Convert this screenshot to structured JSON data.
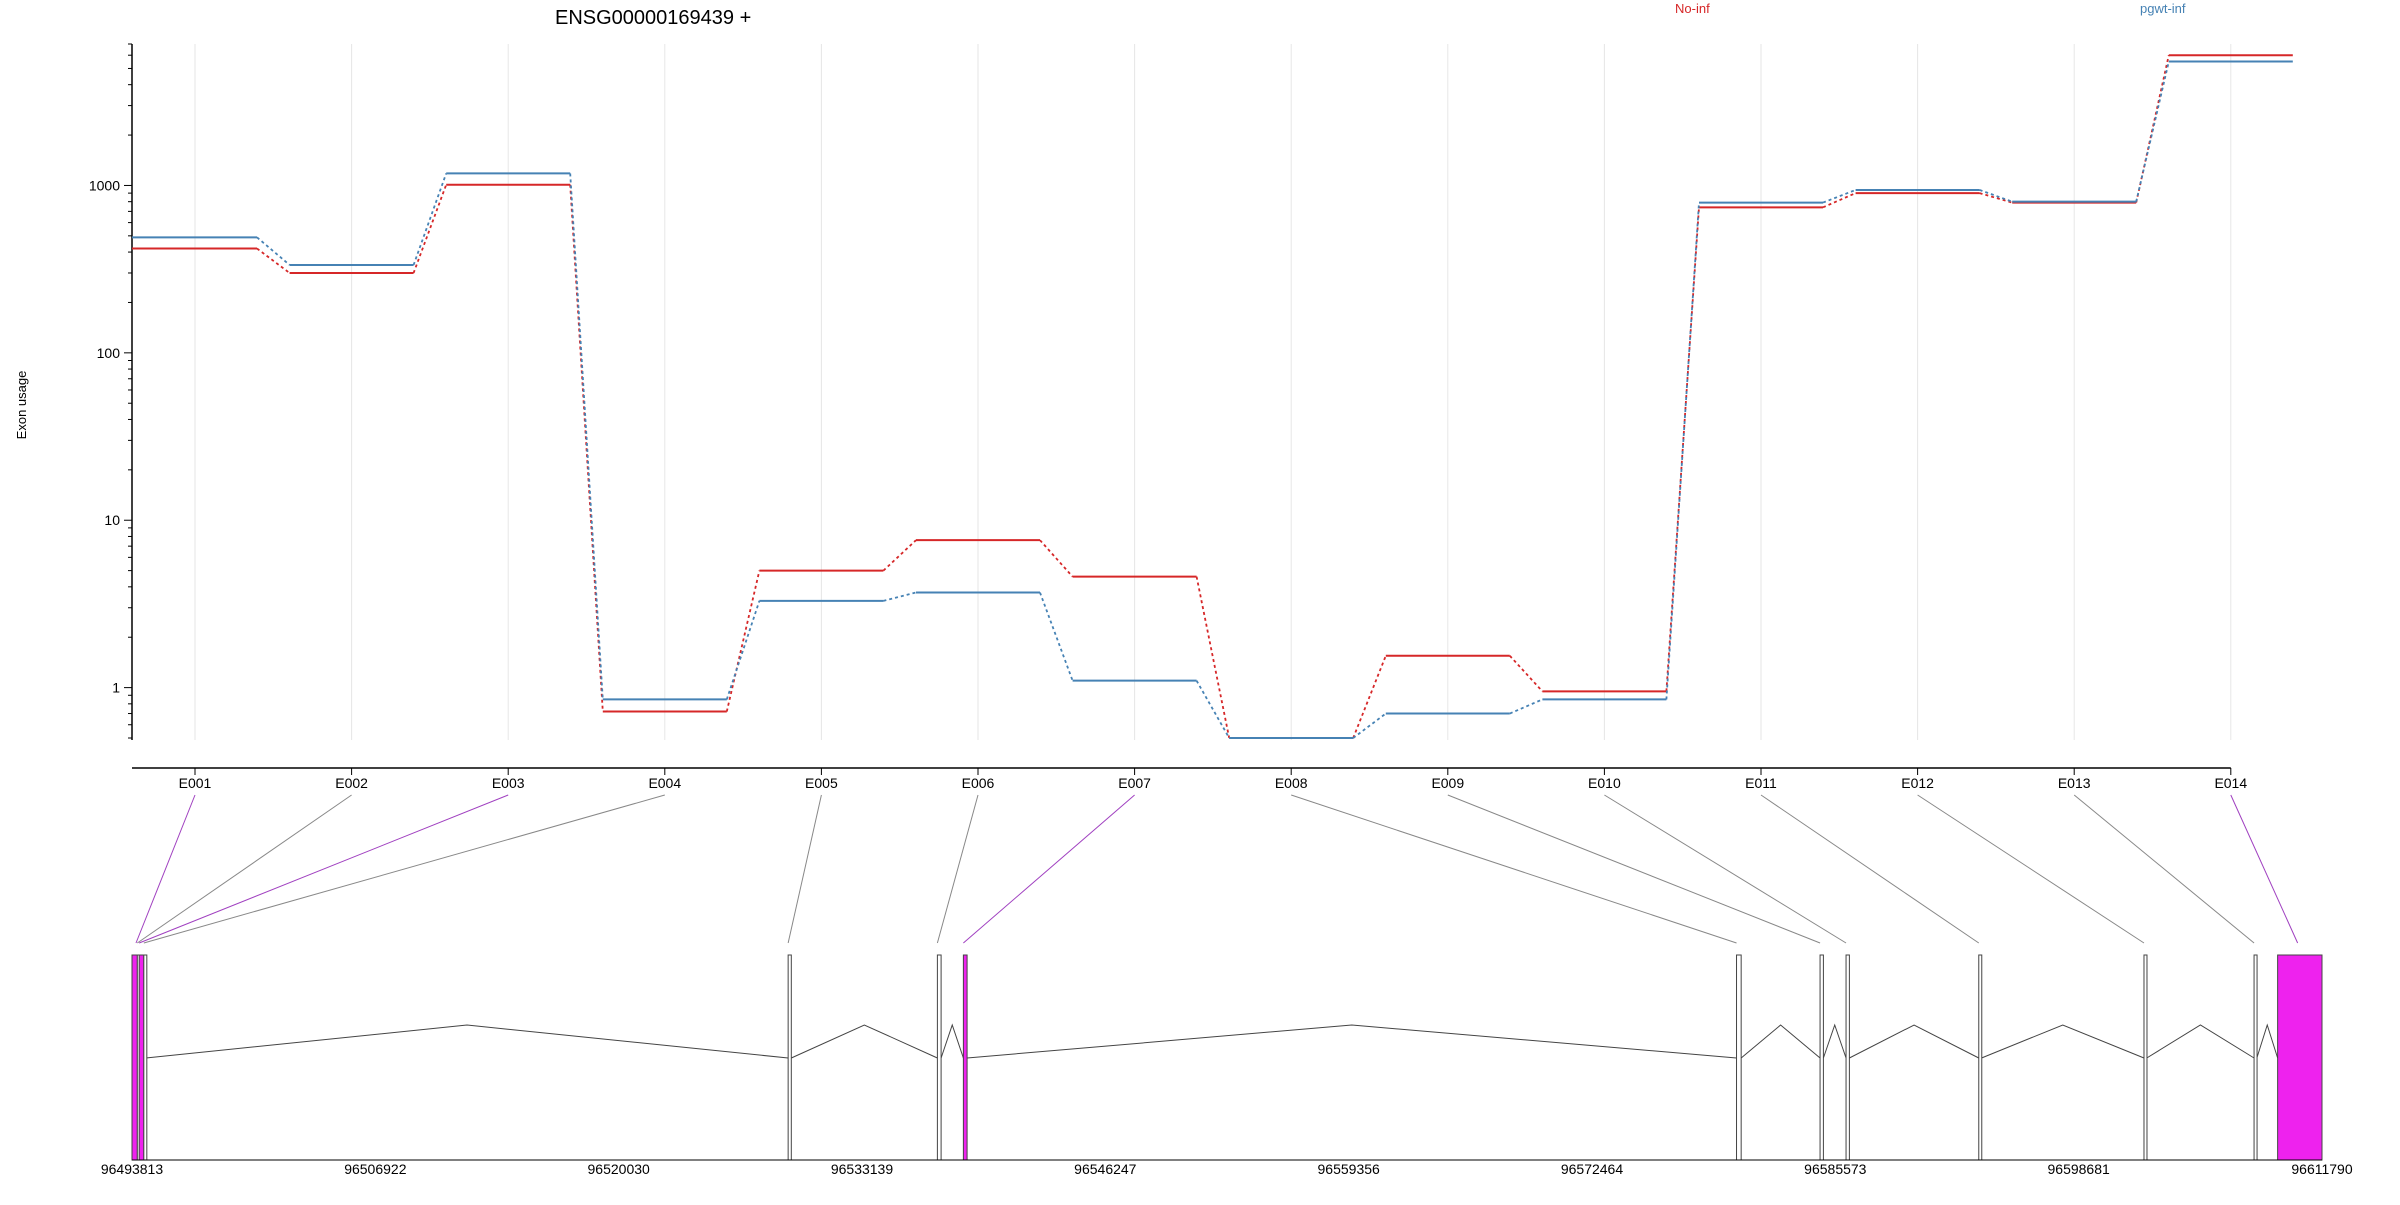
{
  "chart_data": {
    "type": "line",
    "title": "ENSG00000169439 +",
    "ylabel": "Exon usage",
    "yscale": "log",
    "ylim": [
      0.5,
      7000
    ],
    "y_ticks": [
      {
        "value": 1,
        "label": "1"
      },
      {
        "value": 10,
        "label": "10"
      },
      {
        "value": 100,
        "label": "100"
      },
      {
        "value": 1000,
        "label": "1000"
      }
    ],
    "categories": [
      "E001",
      "E002",
      "E003",
      "E004",
      "E005",
      "E006",
      "E007",
      "E008",
      "E009",
      "E010",
      "E011",
      "E012",
      "E013",
      "E014"
    ],
    "legend_placement": "top",
    "series": [
      {
        "name": "No-inf",
        "color": "#d62728",
        "values": [
          420,
          300,
          1010,
          0.72,
          5.0,
          7.6,
          4.6,
          0.5,
          1.55,
          0.95,
          740,
          900,
          790,
          6000
        ]
      },
      {
        "name": "pgwt-inf",
        "color": "#4682b4",
        "values": [
          490,
          335,
          1180,
          0.85,
          3.3,
          3.7,
          1.1,
          0.5,
          0.7,
          0.85,
          790,
          940,
          800,
          5500
        ]
      }
    ],
    "gene_model": {
      "coord_range": [
        96493813,
        96611790
      ],
      "coord_ticks": [
        96493813,
        96506922,
        96520030,
        96533139,
        96546247,
        96559356,
        96572464,
        96585573,
        96598681,
        96611790
      ],
      "exons": [
        {
          "id": "E001",
          "start": 96493813,
          "end": 96494100,
          "highlight": true
        },
        {
          "id": "E002",
          "start": 96494100,
          "end": 96494200,
          "highlight": false
        },
        {
          "id": "E003",
          "start": 96494200,
          "end": 96494450,
          "highlight": true
        },
        {
          "id": "E004",
          "start": 96494450,
          "end": 96494560,
          "highlight": false
        },
        {
          "id": "E005",
          "start": 96529160,
          "end": 96529330,
          "highlight": false
        },
        {
          "id": "E006",
          "start": 96537200,
          "end": 96537400,
          "highlight": false
        },
        {
          "id": "E007",
          "start": 96538600,
          "end": 96538800,
          "highlight": true
        },
        {
          "id": "E008",
          "start": 96580250,
          "end": 96580500,
          "highlight": false
        },
        {
          "id": "E009",
          "start": 96584750,
          "end": 96584930,
          "highlight": false
        },
        {
          "id": "E010",
          "start": 96586150,
          "end": 96586330,
          "highlight": false
        },
        {
          "id": "E011",
          "start": 96593300,
          "end": 96593450,
          "highlight": false
        },
        {
          "id": "E012",
          "start": 96602200,
          "end": 96602350,
          "highlight": false
        },
        {
          "id": "E013",
          "start": 96608130,
          "end": 96608280,
          "highlight": false
        },
        {
          "id": "E014",
          "start": 96609400,
          "end": 96611790,
          "highlight": true
        }
      ]
    },
    "colors": {
      "highlight_exon": "#ee22ee",
      "highlight_link": "#a040c0",
      "axis": "#000000",
      "grid": "#e6e6e6",
      "intron": "#444444",
      "link": "#888888"
    }
  }
}
